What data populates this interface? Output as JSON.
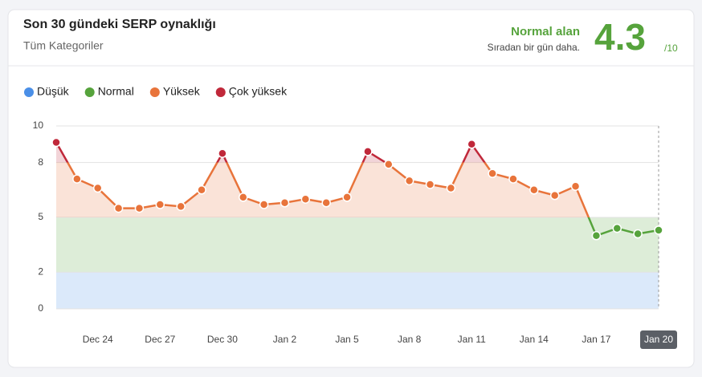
{
  "header": {
    "title": "Son 30 gündeki SERP oynaklığı",
    "subtitle": "Tüm Kategoriler",
    "status": "Normal alan",
    "status_note": "Sıradan bir gün daha.",
    "score": "4.3",
    "score_max": "/10"
  },
  "chart_data": {
    "type": "line",
    "levels": [
      {
        "name": "Düşük",
        "color": "#4a8fe7",
        "from": 0,
        "to": 2
      },
      {
        "name": "Normal",
        "color": "#56a33c",
        "from": 2,
        "to": 5
      },
      {
        "name": "Yüksek",
        "color": "#e8743b",
        "from": 5,
        "to": 8
      },
      {
        "name": "Çok yüksek",
        "color": "#c0283a",
        "from": 8,
        "to": 10
      }
    ],
    "categories": [
      null,
      null,
      "Dec 24",
      null,
      null,
      "Dec 27",
      null,
      null,
      "Dec 30",
      null,
      null,
      "Jan 2",
      null,
      null,
      "Jan 5",
      null,
      null,
      "Jan 8",
      null,
      null,
      "Jan 11",
      null,
      null,
      "Jan 14",
      null,
      null,
      "Jan 17",
      null,
      null,
      "Jan 20"
    ],
    "values": [
      9.1,
      7.1,
      6.6,
      5.5,
      5.5,
      5.7,
      5.6,
      6.5,
      8.5,
      6.1,
      5.7,
      5.8,
      6.0,
      5.8,
      6.1,
      8.6,
      7.9,
      7.0,
      6.8,
      6.6,
      9.0,
      7.4,
      7.1,
      6.5,
      6.2,
      6.7,
      4.0,
      4.4,
      4.1,
      4.3
    ],
    "ylim": [
      0,
      10
    ],
    "yticks": [
      0,
      2,
      5,
      8,
      10
    ],
    "grid": true
  }
}
